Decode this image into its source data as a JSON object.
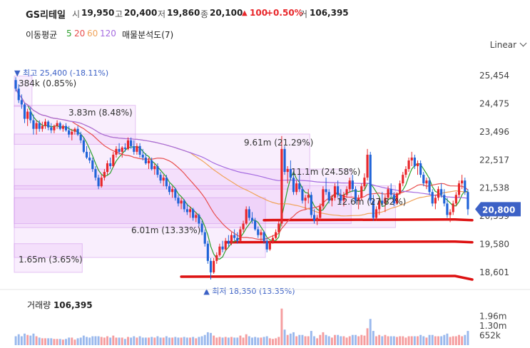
{
  "header": {
    "stock_name": "GS리테일",
    "open_label": "시",
    "open": "19,950",
    "high_label": "고",
    "high": "20,400",
    "low_label": "저",
    "low": "19,860",
    "close_label": "종",
    "close": "20,100",
    "change_arrow": "▲",
    "change": "100",
    "change_pct": "+0.50%",
    "volume_label": "거",
    "volume": "106,395"
  },
  "indicators": {
    "ma_label": "이동평균",
    "ma_periods": [
      "5",
      "20",
      "60",
      "120"
    ],
    "ma_colors": [
      "#2ca02c",
      "#e84d4d",
      "#f0a35a",
      "#a56be0"
    ],
    "vp_label": "매물분석도(7)"
  },
  "scale_toggle": "Linear",
  "chart_data": {
    "type": "candlestick",
    "y_ticks": [
      "25,454",
      "24,475",
      "23,496",
      "22,517",
      "21,538",
      "20,559",
      "19,580",
      "18,601"
    ],
    "ylim": [
      18301,
      25754
    ],
    "current_price": "20,800",
    "current_price_value": 20800,
    "high_marker": "최고 25,400 (-18.11%)",
    "low_marker": "최저 18,350 (13.35%)",
    "volume_profile": [
      {
        "label": "384k (0.85%)",
        "price_top": 25440,
        "price_bottom": 24380,
        "period": [
          0,
          5
        ]
      },
      {
        "label": "3.83m (8.48%)",
        "price_top": 24420,
        "price_bottom": 23060,
        "period": [
          0,
          40
        ]
      },
      {
        "label": "9.61m (21.29%)",
        "price_top": 23420,
        "price_bottom": 21500,
        "period": [
          0,
          99
        ]
      },
      {
        "label": "11.1m (24.58%)",
        "price_top": 22200,
        "price_bottom": 20300,
        "period": [
          0,
          113
        ]
      },
      {
        "label": "12.6m (27.82%)",
        "price_top": 21620,
        "price_bottom": 20160,
        "period": [
          0,
          128
        ]
      },
      {
        "label": "6.01m (13.33%)",
        "price_top": 21200,
        "price_bottom": 19120,
        "period": [
          0,
          84
        ]
      },
      {
        "label": "1.65m (3.65%)",
        "price_top": 19600,
        "price_bottom": 18601,
        "period": [
          0,
          22
        ]
      }
    ],
    "support_lines": [
      20420,
      19650,
      18450
    ],
    "candles": [
      [
        25300,
        25400,
        24900,
        25000
      ],
      [
        25000,
        25150,
        24500,
        24600
      ],
      [
        24600,
        24800,
        24300,
        24450
      ],
      [
        24450,
        24500,
        23800,
        23950
      ],
      [
        23950,
        24300,
        23700,
        24200
      ],
      [
        24200,
        24350,
        23800,
        23900
      ],
      [
        23900,
        24100,
        23400,
        23600
      ],
      [
        23600,
        23900,
        23400,
        23800
      ],
      [
        23800,
        23900,
        23500,
        23600
      ],
      [
        23600,
        23850,
        23500,
        23700
      ],
      [
        23700,
        23950,
        23600,
        23850
      ],
      [
        23850,
        23900,
        23550,
        23650
      ],
      [
        23650,
        23800,
        23450,
        23550
      ],
      [
        23550,
        23750,
        23450,
        23700
      ],
      [
        23700,
        23900,
        23600,
        23800
      ],
      [
        23800,
        23850,
        23550,
        23600
      ],
      [
        23600,
        23750,
        23500,
        23700
      ],
      [
        23700,
        23800,
        23500,
        23550
      ],
      [
        23550,
        23700,
        23300,
        23400
      ],
      [
        23400,
        23600,
        23200,
        23500
      ],
      [
        23500,
        23650,
        23400,
        23600
      ],
      [
        23600,
        23700,
        23350,
        23400
      ],
      [
        23400,
        23500,
        23100,
        23200
      ],
      [
        23200,
        23300,
        22750,
        22800
      ],
      [
        22800,
        23000,
        22550,
        22600
      ],
      [
        22600,
        22800,
        22400,
        22500
      ],
      [
        22500,
        22600,
        22100,
        22200
      ],
      [
        22200,
        22300,
        21800,
        21900
      ],
      [
        21900,
        22000,
        21500,
        21600
      ],
      [
        21600,
        22000,
        21550,
        21900
      ],
      [
        21900,
        22200,
        21800,
        22100
      ],
      [
        22100,
        22500,
        22000,
        22400
      ],
      [
        22400,
        22600,
        22200,
        22300
      ],
      [
        22300,
        22800,
        22250,
        22700
      ],
      [
        22700,
        23000,
        22600,
        22900
      ],
      [
        22900,
        23100,
        22700,
        22800
      ],
      [
        22800,
        23000,
        22600,
        22950
      ],
      [
        22950,
        23100,
        22800,
        22900
      ],
      [
        22900,
        23300,
        22850,
        23200
      ],
      [
        23200,
        23300,
        22900,
        23000
      ],
      [
        23000,
        23200,
        22700,
        22800
      ],
      [
        22800,
        23100,
        22700,
        23000
      ],
      [
        23000,
        23100,
        22600,
        22700
      ],
      [
        22700,
        22900,
        22500,
        22600
      ],
      [
        22600,
        22750,
        22350,
        22400
      ],
      [
        22400,
        22600,
        22200,
        22500
      ],
      [
        22500,
        22600,
        22150,
        22200
      ],
      [
        22200,
        22400,
        22000,
        22300
      ],
      [
        22300,
        22400,
        21900,
        22000
      ],
      [
        22000,
        22100,
        21700,
        21800
      ],
      [
        21800,
        22000,
        21600,
        21900
      ],
      [
        21900,
        22000,
        21500,
        21600
      ],
      [
        21600,
        21700,
        21300,
        21400
      ],
      [
        21400,
        21600,
        21200,
        21500
      ],
      [
        21500,
        21550,
        21100,
        21200
      ],
      [
        21200,
        21300,
        20900,
        21000
      ],
      [
        21000,
        21200,
        20800,
        21100
      ],
      [
        21100,
        21150,
        20700,
        20800
      ],
      [
        20800,
        21000,
        20600,
        20700
      ],
      [
        20700,
        20900,
        20500,
        20800
      ],
      [
        20800,
        20850,
        20400,
        20500
      ],
      [
        20500,
        20700,
        20350,
        20600
      ],
      [
        20600,
        20650,
        20200,
        20300
      ],
      [
        20300,
        20400,
        19900,
        20000
      ],
      [
        20000,
        20100,
        19500,
        19600
      ],
      [
        19600,
        19700,
        18900,
        19000
      ],
      [
        19000,
        19100,
        18350,
        18600
      ],
      [
        18600,
        19100,
        18550,
        19000
      ],
      [
        19000,
        19300,
        18900,
        19200
      ],
      [
        19200,
        19600,
        19150,
        19500
      ],
      [
        19500,
        19700,
        19300,
        19400
      ],
      [
        19400,
        19800,
        19350,
        19700
      ],
      [
        19700,
        19900,
        19500,
        19600
      ],
      [
        19600,
        20000,
        19550,
        19900
      ],
      [
        19900,
        20100,
        19700,
        19800
      ],
      [
        19800,
        20000,
        19600,
        19700
      ],
      [
        19700,
        20200,
        19650,
        20100
      ],
      [
        20100,
        20400,
        20000,
        20300
      ],
      [
        20300,
        20900,
        20250,
        20800
      ],
      [
        20800,
        20900,
        20400,
        20500
      ],
      [
        20500,
        20700,
        20300,
        20400
      ],
      [
        20400,
        20500,
        20050,
        20100
      ],
      [
        20100,
        20200,
        19800,
        19900
      ],
      [
        19900,
        20100,
        19700,
        20000
      ],
      [
        20000,
        20050,
        19600,
        19700
      ],
      [
        19700,
        19800,
        19300,
        19400
      ],
      [
        19400,
        19700,
        19350,
        19650
      ],
      [
        19650,
        19900,
        19600,
        19800
      ],
      [
        19800,
        20100,
        19750,
        20000
      ],
      [
        20000,
        20400,
        19950,
        20300
      ],
      [
        20300,
        23350,
        20200,
        22900
      ],
      [
        22900,
        23000,
        22000,
        22100
      ],
      [
        22100,
        22300,
        21700,
        22200
      ],
      [
        22200,
        22500,
        21800,
        21900
      ],
      [
        21900,
        22100,
        21300,
        21400
      ],
      [
        21400,
        21800,
        21300,
        21700
      ],
      [
        21700,
        22000,
        21400,
        21500
      ],
      [
        21500,
        21600,
        21000,
        21100
      ],
      [
        21100,
        21300,
        20800,
        21200
      ],
      [
        21200,
        21500,
        21000,
        21300
      ],
      [
        21300,
        21400,
        20500,
        20600
      ],
      [
        20600,
        20800,
        20300,
        20400
      ],
      [
        20400,
        20600,
        20250,
        20500
      ],
      [
        20500,
        21000,
        20400,
        20900
      ],
      [
        20900,
        21600,
        20800,
        21500
      ],
      [
        21500,
        21900,
        21300,
        21400
      ],
      [
        21400,
        21500,
        21000,
        21100
      ],
      [
        21100,
        21300,
        20900,
        21200
      ],
      [
        21200,
        21700,
        21100,
        21600
      ],
      [
        21600,
        21800,
        21200,
        21300
      ],
      [
        21300,
        21500,
        21000,
        21100
      ],
      [
        21100,
        21400,
        20900,
        21300
      ],
      [
        21300,
        21600,
        21200,
        21500
      ],
      [
        21500,
        21900,
        21400,
        21800
      ],
      [
        21800,
        22000,
        21400,
        21500
      ],
      [
        21500,
        21600,
        21000,
        21100
      ],
      [
        21100,
        21300,
        20800,
        21200
      ],
      [
        21200,
        21700,
        21100,
        21600
      ],
      [
        21600,
        22050,
        21500,
        21900
      ],
      [
        21900,
        22900,
        21800,
        22700
      ],
      [
        22700,
        22800,
        21000,
        21100
      ],
      [
        21100,
        21300,
        20400,
        20500
      ],
      [
        20500,
        20900,
        20400,
        20800
      ],
      [
        20800,
        21200,
        20600,
        21100
      ],
      [
        21100,
        21400,
        20900,
        21000
      ],
      [
        21000,
        21300,
        20700,
        21200
      ],
      [
        21200,
        21600,
        21100,
        21500
      ],
      [
        21500,
        21700,
        21200,
        21300
      ],
      [
        21300,
        21400,
        20900,
        21000
      ],
      [
        21000,
        21400,
        20950,
        21350
      ],
      [
        21350,
        21800,
        21300,
        21700
      ],
      [
        21700,
        22100,
        21600,
        22000
      ],
      [
        22000,
        22300,
        21900,
        22200
      ],
      [
        22200,
        22600,
        22100,
        22500
      ],
      [
        22500,
        22800,
        22300,
        22600
      ],
      [
        22600,
        22700,
        22200,
        22300
      ],
      [
        22300,
        22500,
        22000,
        22400
      ],
      [
        22400,
        22500,
        21900,
        22000
      ],
      [
        22000,
        22100,
        21600,
        21700
      ],
      [
        21700,
        21900,
        21500,
        21800
      ],
      [
        21800,
        21900,
        21300,
        21400
      ],
      [
        21400,
        21500,
        20900,
        21000
      ],
      [
        21000,
        21300,
        20800,
        21200
      ],
      [
        21200,
        21600,
        21100,
        21500
      ],
      [
        21500,
        21700,
        21200,
        21300
      ],
      [
        21300,
        21500,
        20900,
        21000
      ],
      [
        21000,
        21200,
        20500,
        20600
      ],
      [
        20600,
        20800,
        20350,
        20700
      ],
      [
        20700,
        21100,
        20600,
        21000
      ],
      [
        21000,
        21400,
        20900,
        21300
      ],
      [
        21300,
        21800,
        21200,
        21700
      ],
      [
        21700,
        22000,
        21500,
        21800
      ],
      [
        21800,
        21900,
        21300,
        21400
      ],
      [
        21400,
        21500,
        20600,
        20800
      ]
    ],
    "volume_ticks": [
      "1.96m",
      "1.30m",
      "652k"
    ],
    "volume_max": 2600000,
    "volume_label": "거래량",
    "volume_value": "106,395"
  }
}
